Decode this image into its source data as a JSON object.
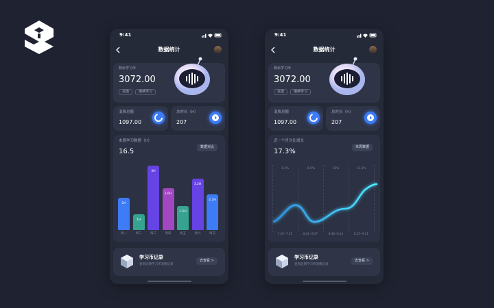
{
  "phones": [
    {
      "status_time": "9:41",
      "nav_title": "数据统计",
      "balance": {
        "label": "剩余学习币",
        "value": "3072.00",
        "buttons": [
          "充值",
          "继续学习"
        ]
      },
      "stats": [
        {
          "label": "消费总额",
          "value": "1097.00"
        },
        {
          "label": "总时长（H）",
          "value": "207"
        }
      ],
      "chart": {
        "title": "本周学习数据（H）",
        "value": "16.5",
        "button": "数据对比",
        "categories": [
          "周一",
          "周二",
          "周三",
          "周四",
          "周五",
          "周六",
          "周日"
        ],
        "values": [
          2,
          1,
          4,
          2.6,
          1.5,
          3.2,
          2.2
        ],
        "value_labels": [
          "2H",
          "1H",
          "4H",
          "2.6H",
          "1.5H",
          "3.2H",
          "2.2H"
        ]
      },
      "record": {
        "title": "学习币记录",
        "subtitle": "查询近期学习币消费记录",
        "button": "去查看 >"
      }
    },
    {
      "status_time": "9:41",
      "nav_title": "数据统计",
      "balance": {
        "label": "剩余学习币",
        "value": "3072.00",
        "buttons": [
          "充值",
          "继续学习"
        ]
      },
      "stats": [
        {
          "label": "消费总额",
          "value": "1097.00"
        },
        {
          "label": "总时长（H）",
          "value": "207"
        }
      ],
      "chart": {
        "title": "近一个月对比增长",
        "value": "17.3%",
        "button": "本周数据",
        "column_labels": [
          "3.3%",
          "-0.0%",
          "10%",
          "11.3%"
        ],
        "categories": [
          "7.25~7.31",
          "8.01~8.07",
          "8.08~8.14",
          "8.15~8.21"
        ]
      },
      "record": {
        "title": "学习币记录",
        "subtitle": "查询近期学习币消费记录",
        "button": "去查看 >"
      }
    }
  ]
}
